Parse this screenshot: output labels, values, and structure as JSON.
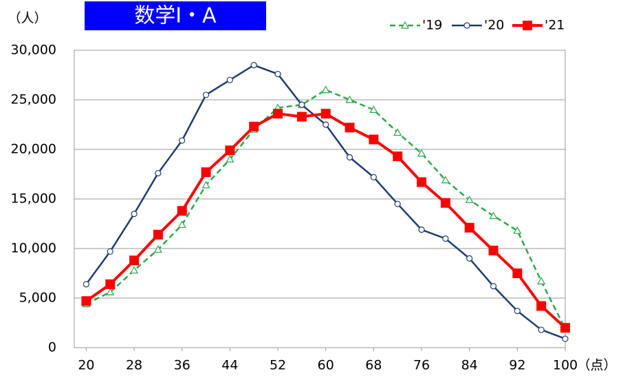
{
  "chart_data": {
    "type": "line",
    "title": "数学Ⅰ・A",
    "ylabel": "（人）",
    "xlabel": "（点）",
    "x": [
      20,
      24,
      28,
      32,
      36,
      40,
      44,
      48,
      52,
      56,
      60,
      64,
      68,
      72,
      76,
      80,
      84,
      88,
      92,
      96,
      100
    ],
    "xlim": [
      18,
      100
    ],
    "xticks": [
      20,
      28,
      36,
      44,
      52,
      60,
      68,
      76,
      84,
      92,
      100
    ],
    "ylim": [
      0,
      30000
    ],
    "yticks": [
      0,
      {
        "value": 5000,
        "label": "5,000"
      },
      {
        "value": 10000,
        "label": "10,000"
      },
      {
        "value": 15000,
        "label": "15,000"
      },
      {
        "value": 20000,
        "label": "20,000"
      },
      {
        "value": 25000,
        "label": "25,000"
      },
      {
        "value": 30000,
        "label": "30,000"
      }
    ],
    "grid": true,
    "legend": "top-right",
    "series": [
      {
        "name": "'19",
        "color": "#2aa84a",
        "line_style": "dashed",
        "marker": "triangle",
        "values": [
          4400,
          5600,
          7800,
          9900,
          12400,
          16400,
          19000,
          22000,
          24200,
          24500,
          26000,
          25000,
          24000,
          21700,
          19600,
          16900,
          14900,
          13300,
          11800,
          6700,
          1900
        ]
      },
      {
        "name": "'20",
        "color": "#1f3b73",
        "line_style": "solid",
        "marker": "circle",
        "values": [
          6400,
          9700,
          13500,
          17600,
          20900,
          25500,
          27000,
          28500,
          27600,
          24500,
          22500,
          19200,
          17200,
          14500,
          11900,
          11000,
          9000,
          6200,
          3700,
          1800,
          900
        ]
      },
      {
        "name": "'21",
        "color": "#ff0000",
        "line_style": "solid",
        "marker": "square",
        "values": [
          4700,
          6400,
          8800,
          11400,
          13800,
          17700,
          19900,
          22300,
          23600,
          23300,
          23600,
          22200,
          21000,
          19300,
          16700,
          14600,
          12100,
          9800,
          7500,
          4200,
          2000
        ]
      }
    ]
  }
}
